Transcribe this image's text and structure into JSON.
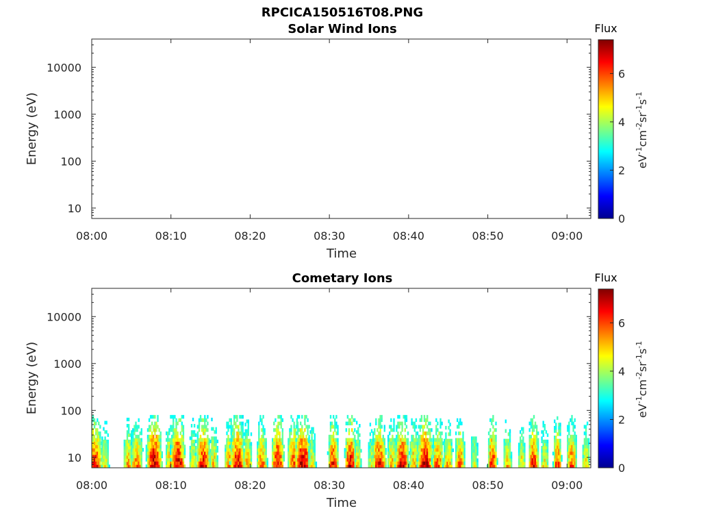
{
  "figure_title": "RPCICA150516T08.PNG",
  "chart_data": [
    {
      "type": "heatmap",
      "title": "Solar Wind Ions",
      "xlabel": "Time",
      "ylabel": "Energy (eV)",
      "x_ticks": [
        "08:00",
        "08:10",
        "08:20",
        "08:30",
        "08:40",
        "08:50",
        "09:00"
      ],
      "xlim": [
        "08:00",
        "09:03"
      ],
      "y_scale": "log",
      "y_ticks": [
        "10",
        "100",
        "1000",
        "10000"
      ],
      "ylim": [
        6,
        40000
      ],
      "colorbar": {
        "label": "Flux",
        "unit_base": [
          "eV",
          "cm",
          "sr",
          "s"
        ],
        "unit_exp": [
          "-1",
          "-2",
          "-1",
          "-1"
        ],
        "ticks": [
          "0",
          "2",
          "4",
          "6"
        ],
        "range": [
          0,
          7.4
        ]
      },
      "events": []
    },
    {
      "type": "heatmap",
      "title": "Cometary Ions",
      "xlabel": "Time",
      "ylabel": "Energy (eV)",
      "x_ticks": [
        "08:00",
        "08:10",
        "08:20",
        "08:30",
        "08:40",
        "08:50",
        "09:00"
      ],
      "xlim": [
        "08:00",
        "09:03"
      ],
      "y_scale": "log",
      "y_ticks": [
        "10",
        "100",
        "1000",
        "10000"
      ],
      "ylim": [
        6,
        40000
      ],
      "colorbar": {
        "label": "Flux",
        "unit_base": [
          "eV",
          "cm",
          "sr",
          "s"
        ],
        "unit_exp": [
          "-1",
          "-2",
          "-1",
          "-1"
        ],
        "ticks": [
          "0",
          "2",
          "4",
          "6"
        ],
        "range": [
          0,
          7.4
        ]
      },
      "events": [
        {
          "t": 0.3,
          "w": 1.4,
          "peak": 6.5,
          "emax": 80
        },
        {
          "t": 1.6,
          "w": 0.6,
          "peak": 5.0,
          "emax": 70
        },
        {
          "t": 4.5,
          "w": 0.8,
          "peak": 5.5,
          "emax": 70
        },
        {
          "t": 5.6,
          "w": 1.2,
          "peak": 5.8,
          "emax": 80
        },
        {
          "t": 7.8,
          "w": 1.5,
          "peak": 7.2,
          "emax": 80
        },
        {
          "t": 9.8,
          "w": 0.8,
          "peak": 5.5,
          "emax": 80
        },
        {
          "t": 10.8,
          "w": 1.4,
          "peak": 7.0,
          "emax": 80
        },
        {
          "t": 12.7,
          "w": 0.6,
          "peak": 5.0,
          "emax": 70
        },
        {
          "t": 14.0,
          "w": 1.3,
          "peak": 6.8,
          "emax": 80
        },
        {
          "t": 15.3,
          "w": 0.7,
          "peak": 5.2,
          "emax": 70
        },
        {
          "t": 17.3,
          "w": 0.9,
          "peak": 5.5,
          "emax": 80
        },
        {
          "t": 18.3,
          "w": 1.4,
          "peak": 6.8,
          "emax": 80
        },
        {
          "t": 19.6,
          "w": 0.8,
          "peak": 5.3,
          "emax": 75
        },
        {
          "t": 21.4,
          "w": 1.0,
          "peak": 5.8,
          "emax": 80
        },
        {
          "t": 23.4,
          "w": 1.2,
          "peak": 6.8,
          "emax": 80
        },
        {
          "t": 25.4,
          "w": 1.2,
          "peak": 6.0,
          "emax": 80
        },
        {
          "t": 26.6,
          "w": 1.6,
          "peak": 7.2,
          "emax": 80
        },
        {
          "t": 27.7,
          "w": 0.6,
          "peak": 5.0,
          "emax": 70
        },
        {
          "t": 30.4,
          "w": 0.9,
          "peak": 6.5,
          "emax": 80
        },
        {
          "t": 32.6,
          "w": 1.0,
          "peak": 7.0,
          "emax": 80
        },
        {
          "t": 33.5,
          "w": 0.5,
          "peak": 5.0,
          "emax": 70
        },
        {
          "t": 35.2,
          "w": 0.5,
          "peak": 4.6,
          "emax": 75
        },
        {
          "t": 36.2,
          "w": 1.4,
          "peak": 6.5,
          "emax": 80
        },
        {
          "t": 37.8,
          "w": 0.8,
          "peak": 5.3,
          "emax": 80
        },
        {
          "t": 39.1,
          "w": 1.3,
          "peak": 6.8,
          "emax": 80
        },
        {
          "t": 40.6,
          "w": 0.8,
          "peak": 5.5,
          "emax": 80
        },
        {
          "t": 42.0,
          "w": 1.5,
          "peak": 7.0,
          "emax": 80
        },
        {
          "t": 43.6,
          "w": 1.0,
          "peak": 6.0,
          "emax": 80
        },
        {
          "t": 44.9,
          "w": 0.8,
          "peak": 5.5,
          "emax": 75
        },
        {
          "t": 46.4,
          "w": 0.9,
          "peak": 5.8,
          "emax": 80
        },
        {
          "t": 48.2,
          "w": 0.5,
          "peak": 4.8,
          "emax": 70
        },
        {
          "t": 50.5,
          "w": 0.8,
          "peak": 6.5,
          "emax": 80
        },
        {
          "t": 52.4,
          "w": 0.7,
          "peak": 5.2,
          "emax": 75
        },
        {
          "t": 54.2,
          "w": 0.6,
          "peak": 5.0,
          "emax": 70
        },
        {
          "t": 55.7,
          "w": 0.9,
          "peak": 6.5,
          "emax": 80
        },
        {
          "t": 57.1,
          "w": 0.6,
          "peak": 5.0,
          "emax": 70
        },
        {
          "t": 58.7,
          "w": 0.6,
          "peak": 6.2,
          "emax": 75
        },
        {
          "t": 60.5,
          "w": 0.9,
          "peak": 6.0,
          "emax": 80
        },
        {
          "t": 62.3,
          "w": 0.6,
          "peak": 5.0,
          "emax": 80
        }
      ]
    }
  ]
}
